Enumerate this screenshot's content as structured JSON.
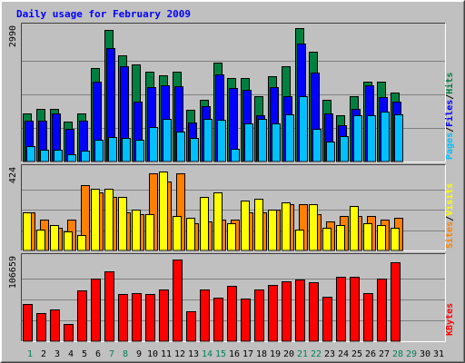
{
  "chart_data": {
    "type": "bar",
    "title": "Daily usage for February 2009",
    "categories": [
      "1",
      "2",
      "3",
      "4",
      "5",
      "6",
      "7",
      "8",
      "9",
      "10",
      "11",
      "12",
      "13",
      "14",
      "15",
      "16",
      "17",
      "18",
      "19",
      "20",
      "21",
      "22",
      "23",
      "24",
      "25",
      "26",
      "27",
      "28",
      "29",
      "30",
      "31"
    ],
    "weekend_days": [
      "1",
      "7",
      "8",
      "14",
      "15",
      "21",
      "22",
      "28",
      "29"
    ],
    "panels": [
      {
        "key": "hits",
        "max_label": "2990",
        "ylim": [
          0,
          2990
        ],
        "axis_labels": [
          "Pages",
          "Files",
          "Hits"
        ],
        "series": [
          {
            "name": "Hits",
            "color": "#008040",
            "values": [
              1070,
              1180,
              1180,
              880,
              1080,
              2080,
              2930,
              2370,
              2170,
              2000,
              1920,
              2000,
              1160,
              1370,
              2200,
              1860,
              1860,
              1460,
              1890,
              2130,
              2960,
              2440,
              1370,
              1040,
              1450,
              1770,
              1780,
              1540,
              0,
              0,
              0
            ]
          },
          {
            "name": "Files",
            "color": "#0000ff",
            "values": [
              900,
              900,
              1070,
              730,
              900,
              1780,
              2520,
              2130,
              1340,
              1660,
              1700,
              1670,
              860,
              1230,
              1940,
              1640,
              1600,
              1040,
              1650,
              1450,
              2620,
              1980,
              1080,
              800,
              1180,
              1700,
              1430,
              1330,
              0,
              0,
              0
            ]
          },
          {
            "name": "Pages",
            "color": "#00c0ff",
            "values": [
              350,
              270,
              260,
              160,
              240,
              490,
              540,
              520,
              490,
              770,
              940,
              660,
              530,
              950,
              930,
              280,
              840,
              950,
              850,
              1060,
              1460,
              720,
              450,
              570,
              1040,
              1040,
              1120,
              1050,
              0,
              0,
              0
            ]
          }
        ]
      },
      {
        "key": "visits",
        "max_label": "424",
        "ylim": [
          0,
          424
        ],
        "axis_labels": [
          "Sites",
          "Visits"
        ],
        "series": [
          {
            "name": "Visits",
            "color": "#ffff00",
            "values": [
              200,
              110,
              130,
              100,
              80,
              320,
              320,
              280,
              210,
              190,
              410,
              180,
              170,
              280,
              300,
              140,
              260,
              270,
              210,
              250,
              110,
              240,
              120,
              130,
              230,
              140,
              130,
              120,
              0,
              0,
              0
            ]
          },
          {
            "name": "Sites",
            "color": "#ff8000",
            "values": [
              200,
              160,
              120,
              160,
              340,
              300,
              280,
              200,
              190,
              400,
              360,
              400,
              140,
              150,
              160,
              160,
              200,
              200,
              210,
              240,
              240,
              190,
              150,
              180,
              180,
              180,
              160,
              170,
              0,
              0,
              0
            ]
          }
        ]
      },
      {
        "key": "kbytes",
        "max_label": "106659",
        "ylim": [
          0,
          106659
        ],
        "axis_labels": [
          "KBytes"
        ],
        "series": [
          {
            "name": "KBytes",
            "color": "#ff0000",
            "values": [
              48000,
              36000,
              41000,
              22000,
              65000,
              80000,
              89000,
              60000,
              62000,
              60000,
              66000,
              104000,
              38000,
              66000,
              56000,
              71000,
              55000,
              66000,
              72000,
              77000,
              79000,
              75000,
              57000,
              82000,
              82000,
              61000,
              80000,
              101000,
              0,
              0,
              0
            ]
          }
        ]
      }
    ]
  }
}
